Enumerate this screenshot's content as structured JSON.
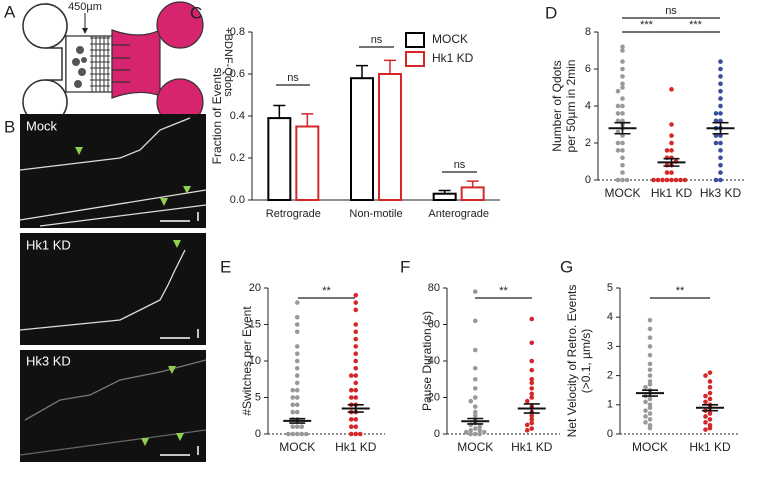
{
  "diagram": {
    "panel_label": "A",
    "distance": "450µm",
    "label": "+BDNF-Qdots"
  },
  "kymographs": {
    "panel_label": "B",
    "labels": [
      "Mock",
      "Hk1 KD",
      "Hk3 KD"
    ]
  },
  "chart_data": [
    {
      "type": "bar",
      "panel_label": "C",
      "ylabel": [
        "Fraction of Events"
      ],
      "categories": [
        "Retrograde",
        "Non-motile",
        "Anterograde"
      ],
      "series": [
        {
          "name": "MOCK",
          "color": "#000000",
          "values": [
            0.39,
            0.58,
            0.03
          ],
          "errors": [
            0.06,
            0.06,
            0.015
          ]
        },
        {
          "name": "Hk1 KD",
          "color": "#d62728",
          "values": [
            0.35,
            0.6,
            0.06
          ],
          "errors": [
            0.06,
            0.065,
            0.03
          ]
        }
      ],
      "ylim": [
        0,
        0.8
      ],
      "yticks": [
        {
          "value": 0,
          "label": "0.0"
        },
        0.2,
        0.4,
        0.6,
        0.8
      ],
      "annotations": [
        "ns",
        "ns",
        "ns"
      ],
      "legend": "top-right"
    },
    {
      "type": "dot",
      "panel_label": "D",
      "ylabel": [
        "Number of Qdots",
        "per 50µm in 2min"
      ],
      "categories": [
        "MOCK",
        "Hk1 KD",
        "Hk3 KD"
      ],
      "colors": [
        "#999999",
        "#d62728",
        "#3b4ea0"
      ],
      "points": [
        [
          7.2,
          7.0,
          6.4,
          6.0,
          5.6,
          5.2,
          5.0,
          4.8,
          4.4,
          4.0,
          4.0,
          3.6,
          3.6,
          3.2,
          3.2,
          3.0,
          2.8,
          2.6,
          2.4,
          2.0,
          2.0,
          1.6,
          1.6,
          1.2,
          0.8,
          0.4,
          0,
          0,
          0
        ],
        [
          4.9,
          3.0,
          2.4,
          2.0,
          1.6,
          1.6,
          1.2,
          1.2,
          1.0,
          0.8,
          0.8,
          0.4,
          0.4,
          0,
          0,
          0,
          0,
          0,
          0,
          0,
          0
        ],
        [
          6.4,
          6.0,
          5.6,
          5.2,
          4.8,
          4.4,
          4.0,
          3.6,
          3.6,
          3.2,
          3.2,
          2.8,
          2.8,
          2.4,
          2.4,
          2.0,
          2.0,
          1.6,
          1.2,
          0.8,
          0.4,
          0,
          0
        ]
      ],
      "means": [
        2.8,
        0.95,
        2.8
      ],
      "sems": [
        0.3,
        0.2,
        0.3
      ],
      "ylim": [
        0,
        8
      ],
      "yticks": [
        0,
        2,
        4,
        6,
        8
      ],
      "annotations": [
        "ns",
        "***",
        "***"
      ]
    },
    {
      "type": "dot",
      "panel_label": "E",
      "ylabel": [
        "#Switches per Event"
      ],
      "categories": [
        "MOCK",
        "Hk1 KD"
      ],
      "colors": [
        "#999999",
        "#d62728"
      ],
      "points": [
        [
          18,
          16,
          15,
          14,
          12,
          11,
          10,
          9,
          8,
          7,
          6,
          6,
          5,
          5,
          4,
          4,
          3,
          3,
          2,
          2,
          1,
          1,
          1,
          0,
          0,
          0,
          0,
          0
        ],
        [
          19,
          18,
          17,
          15,
          14,
          13,
          12,
          11,
          10,
          9,
          8,
          8,
          7,
          6,
          6,
          5,
          5,
          4,
          4,
          3,
          3,
          2,
          2,
          1,
          1,
          0,
          0,
          0
        ]
      ],
      "means": [
        1.8,
        3.5
      ],
      "sems": [
        0.3,
        0.5
      ],
      "ylim": [
        0,
        20
      ],
      "yticks": [
        0,
        5,
        10,
        15,
        20
      ],
      "annotations": [
        "**"
      ]
    },
    {
      "type": "dot",
      "panel_label": "F",
      "ylabel": [
        "Pause Duration (s)"
      ],
      "categories": [
        "MOCK",
        "Hk1 KD"
      ],
      "colors": [
        "#999999",
        "#d62728"
      ],
      "points": [
        [
          78,
          62,
          46,
          36,
          30,
          25,
          20,
          18,
          15,
          12,
          10,
          8,
          6,
          5,
          4,
          3,
          2,
          2,
          1,
          1,
          0,
          0,
          0
        ],
        [
          63,
          50,
          40,
          35,
          30,
          28,
          25,
          22,
          20,
          18,
          15,
          12,
          10,
          8,
          6,
          5,
          3,
          2
        ]
      ],
      "means": [
        7,
        14
      ],
      "sems": [
        1.5,
        2.5
      ],
      "ylim": [
        0,
        80
      ],
      "yticks": [
        0,
        20,
        40,
        60,
        80
      ],
      "annotations": [
        "**"
      ]
    },
    {
      "type": "dot",
      "panel_label": "G",
      "ylabel": [
        "Net Velocity of Retro. Events",
        "(>0.1, µm/s)"
      ],
      "categories": [
        "MOCK",
        "Hk1 KD"
      ],
      "colors": [
        "#999999",
        "#d62728"
      ],
      "points": [
        [
          3.9,
          3.6,
          3.3,
          3.0,
          2.7,
          2.4,
          2.2,
          2.0,
          1.8,
          1.7,
          1.6,
          1.5,
          1.4,
          1.3,
          1.2,
          1.1,
          1.0,
          0.9,
          0.8,
          0.7,
          0.6,
          0.5,
          0.4,
          0.3,
          0.2
        ],
        [
          2.1,
          2.0,
          1.8,
          1.6,
          1.4,
          1.3,
          1.2,
          1.1,
          1.0,
          0.9,
          0.8,
          0.7,
          0.6,
          0.5,
          0.4,
          0.3,
          0.2,
          0.15
        ]
      ],
      "means": [
        1.4,
        0.9
      ],
      "sems": [
        0.1,
        0.1
      ],
      "ylim": [
        0,
        5
      ],
      "yticks": [
        0,
        1,
        2,
        3,
        4,
        5
      ],
      "annotations": [
        "**"
      ]
    }
  ]
}
